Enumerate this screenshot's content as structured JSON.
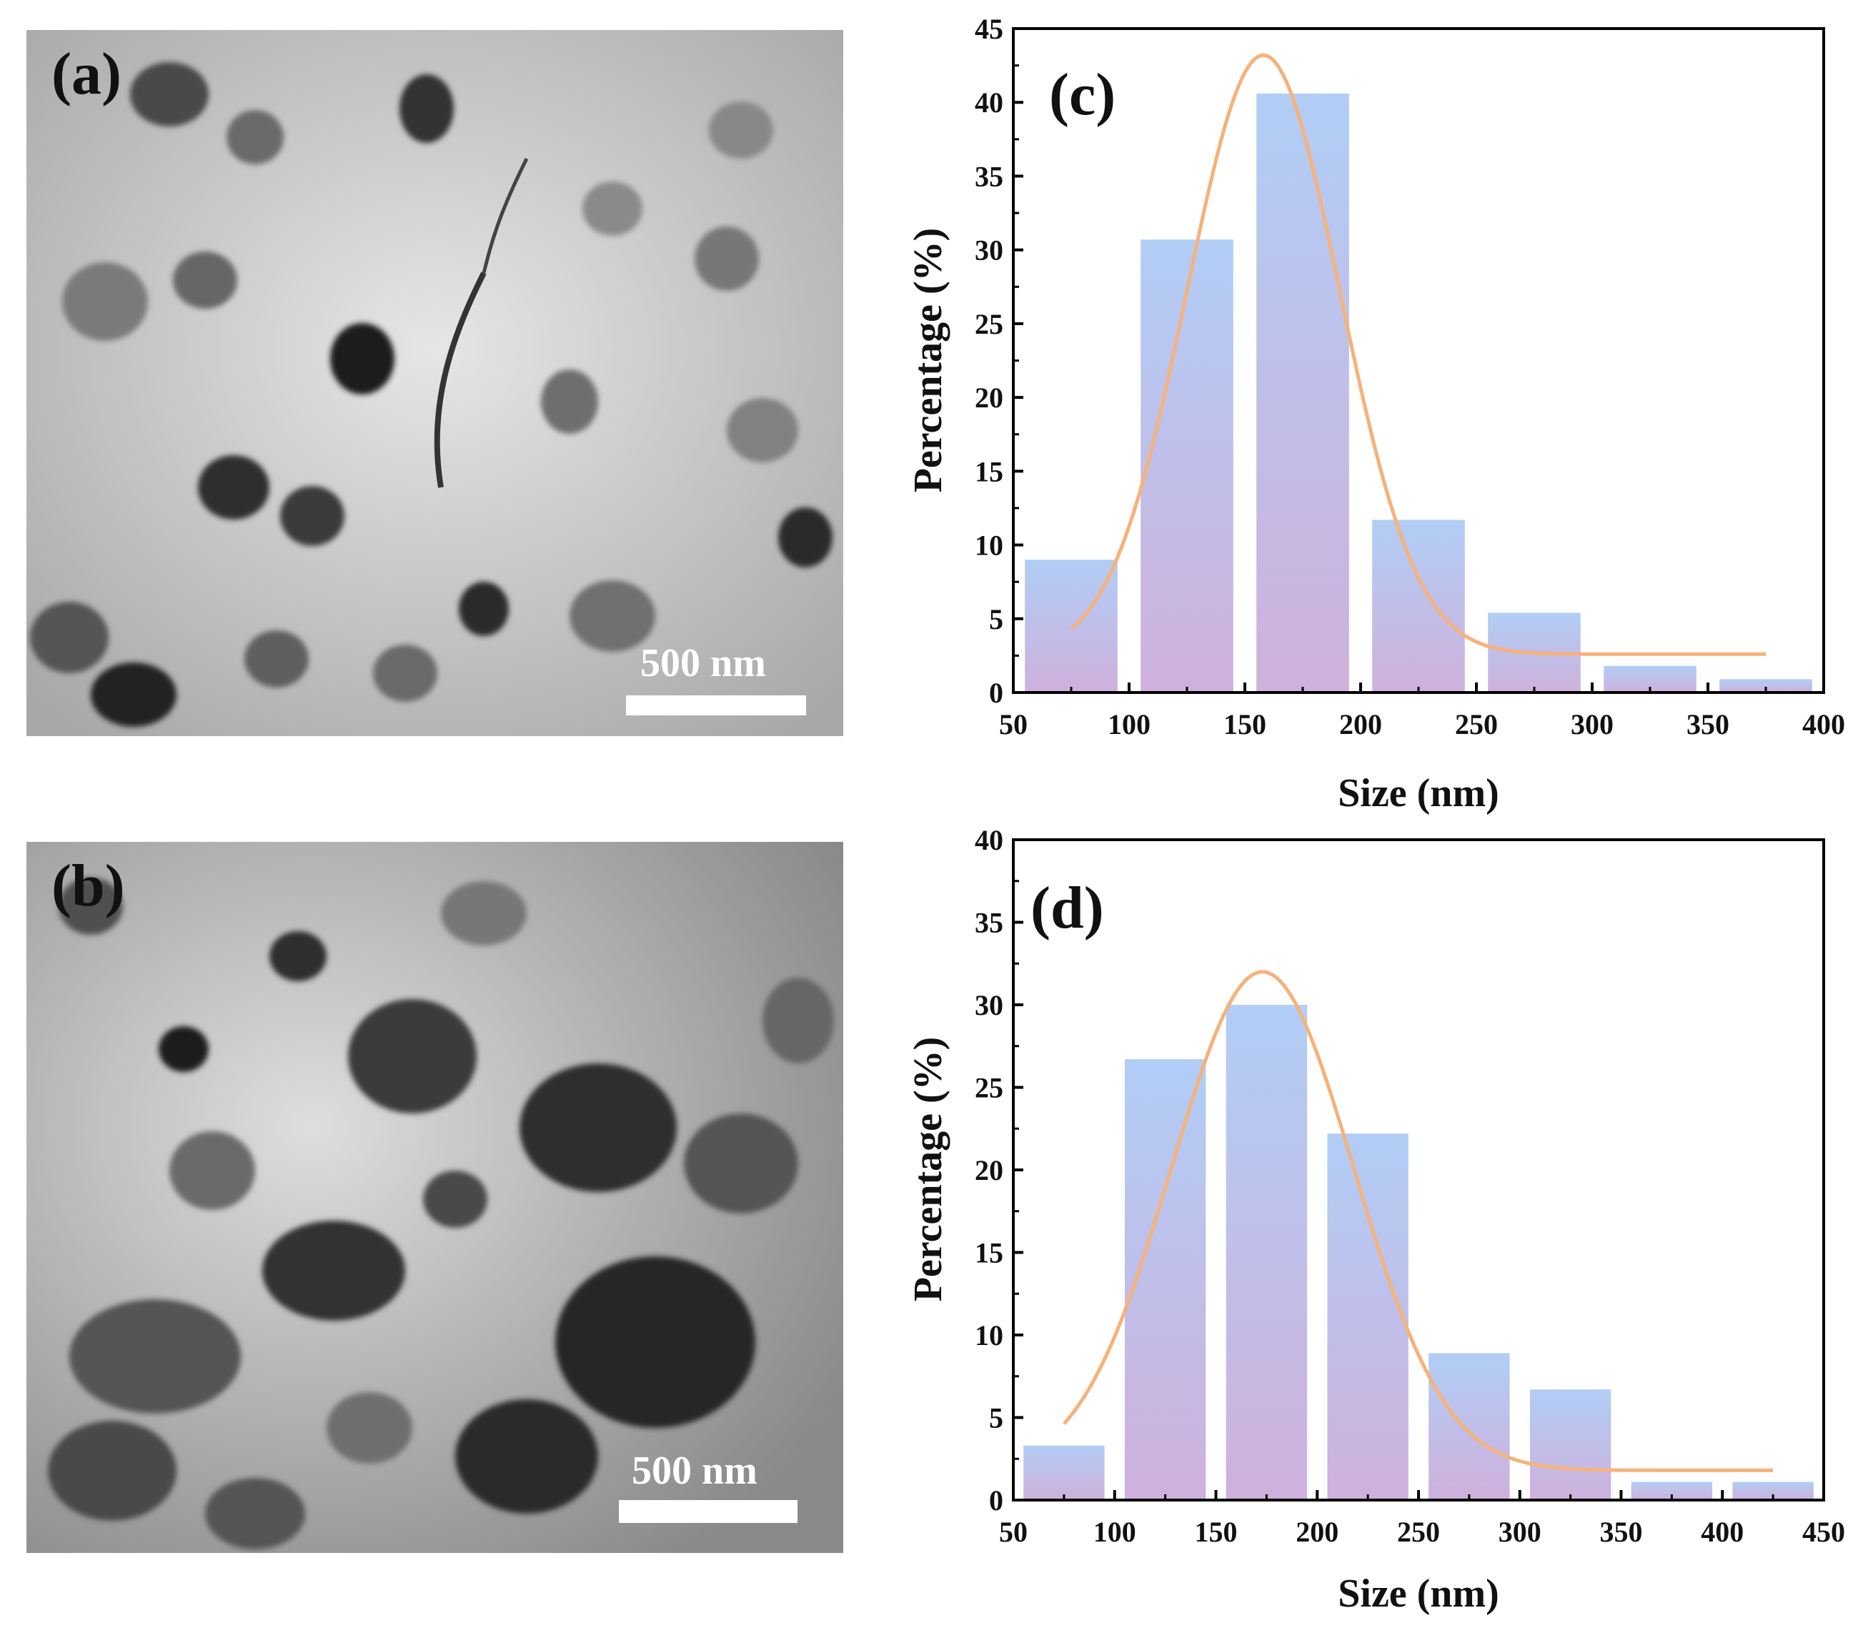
{
  "micrographs": [
    {
      "panel_label": "(a)",
      "scale_bar_label": "500 nm"
    },
    {
      "panel_label": "(b)",
      "scale_bar_label": "500 nm"
    }
  ],
  "colors": {
    "bar_top": "#a9c8f5",
    "bar_bottom": "#c9a8d8",
    "fit_curve": "#f5b27a",
    "axis": "#000000"
  },
  "chart_data": [
    {
      "type": "bar",
      "panel_label": "(c)",
      "xlabel": "Size (nm)",
      "ylabel": "Percentage (%)",
      "xlim": [
        50,
        400
      ],
      "ylim": [
        0,
        45
      ],
      "xticks": [
        50,
        100,
        150,
        200,
        250,
        300,
        350,
        400
      ],
      "yticks": [
        0,
        5,
        10,
        15,
        20,
        25,
        30,
        35,
        40,
        45
      ],
      "bins": [
        [
          55,
          95
        ],
        [
          105,
          145
        ],
        [
          155,
          195
        ],
        [
          205,
          245
        ],
        [
          255,
          295
        ],
        [
          305,
          345
        ],
        [
          355,
          395
        ]
      ],
      "values": [
        9.0,
        30.7,
        40.6,
        11.7,
        5.4,
        1.8,
        0.9
      ],
      "fit_curve": {
        "type": "gaussian",
        "x_range": [
          75,
          375
        ],
        "baseline": 2.6,
        "amplitude": 40.6,
        "center": 158,
        "sigma": 33
      }
    },
    {
      "type": "bar",
      "panel_label": "(d)",
      "xlabel": "Size (nm)",
      "ylabel": "Percentage (%)",
      "xlim": [
        50,
        450
      ],
      "ylim": [
        0,
        40
      ],
      "xticks": [
        50,
        100,
        150,
        200,
        250,
        300,
        350,
        400,
        450
      ],
      "yticks": [
        0,
        5,
        10,
        15,
        20,
        25,
        30,
        35,
        40
      ],
      "bins": [
        [
          55,
          95
        ],
        [
          105,
          145
        ],
        [
          155,
          195
        ],
        [
          205,
          245
        ],
        [
          255,
          295
        ],
        [
          305,
          345
        ],
        [
          355,
          395
        ],
        [
          405,
          445
        ]
      ],
      "values": [
        3.3,
        26.7,
        30.0,
        22.2,
        8.9,
        6.7,
        1.1,
        1.1
      ],
      "fit_curve": {
        "type": "gaussian",
        "x_range": [
          75,
          425
        ],
        "baseline": 1.8,
        "amplitude": 30.2,
        "center": 173,
        "sigma": 45
      }
    }
  ]
}
